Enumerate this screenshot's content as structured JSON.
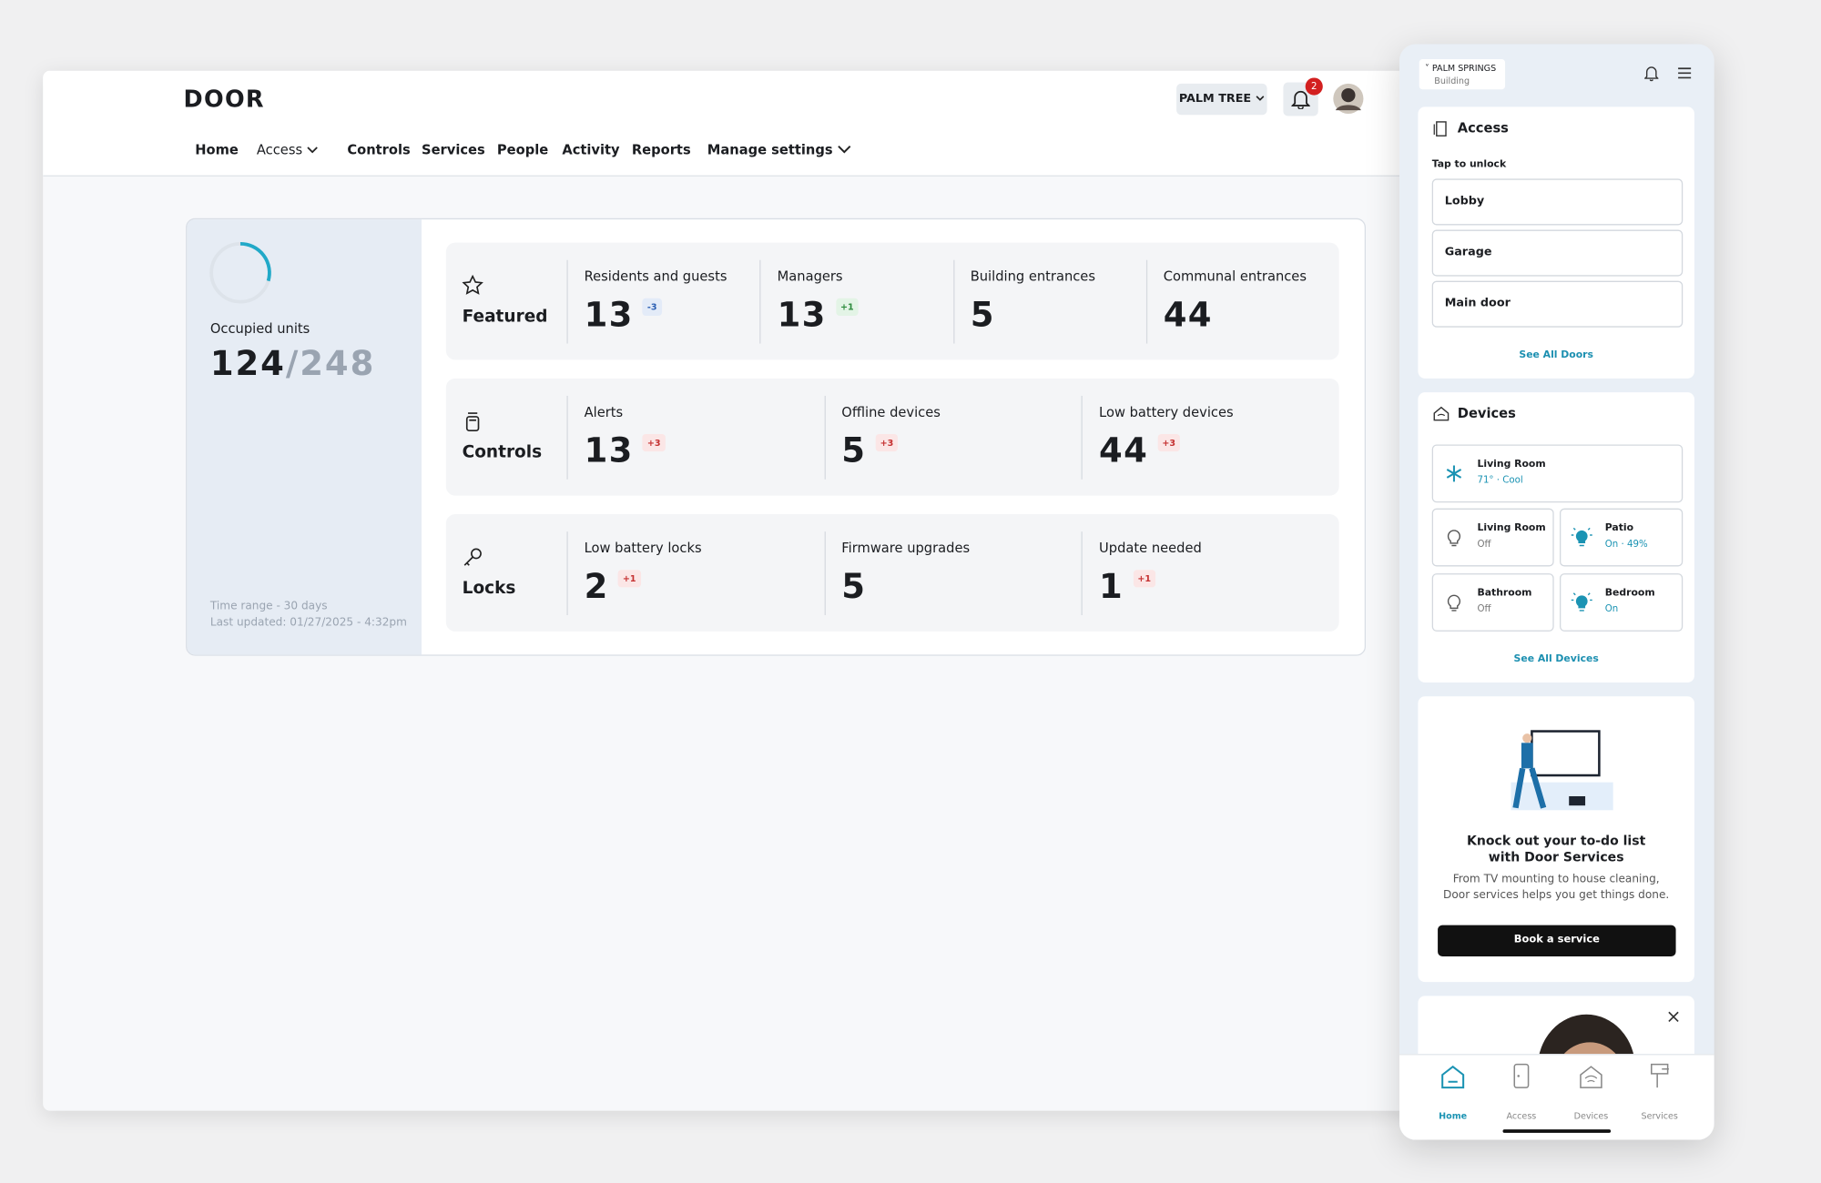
{
  "app": {
    "logo": "DOOR",
    "property": "PALM TREE",
    "notification_count": "2"
  },
  "nav": [
    "Home",
    "Access",
    "Controls",
    "Services",
    "People",
    "Activity",
    "Reports",
    "Manage settings"
  ],
  "summary": {
    "label": "Occupied units",
    "occupied": "124",
    "separator": "/",
    "total": "248",
    "time_range": "Time range - 30 days",
    "last_updated": "Last updated: 01/27/2025 - 4:32pm"
  },
  "groups": [
    {
      "title": "Featured",
      "metrics": [
        {
          "label": "Residents and guests",
          "value": "13",
          "delta": "-3"
        },
        {
          "label": "Managers",
          "value": "13",
          "delta": "+1"
        },
        {
          "label": "Building entrances",
          "value": "5"
        },
        {
          "label": "Communal entrances",
          "value": "44"
        }
      ]
    },
    {
      "title": "Controls",
      "metrics": [
        {
          "label": "Alerts",
          "value": "13",
          "delta": "+3"
        },
        {
          "label": "Offline devices",
          "value": "5",
          "delta": "+3"
        },
        {
          "label": "Low battery devices",
          "value": "44",
          "delta": "+3"
        }
      ]
    },
    {
      "title": "Locks",
      "metrics": [
        {
          "label": "Low battery locks",
          "value": "2",
          "delta": "+1"
        },
        {
          "label": "Firmware upgrades",
          "value": "5"
        },
        {
          "label": "Update needed",
          "value": "1",
          "delta": "+1"
        }
      ]
    }
  ],
  "mobile": {
    "location": "PALM SPRINGS",
    "location_type": "Building",
    "access": {
      "title": "Access",
      "subtitle": "Tap to unlock",
      "doors": [
        "Lobby",
        "Garage",
        "Main door"
      ],
      "link": "See All Doors"
    },
    "devices": {
      "title": "Devices",
      "items": [
        {
          "name": "Living Room",
          "status": "71° · Cool"
        },
        {
          "name": "Living Room",
          "status": "Off"
        },
        {
          "name": "Patio",
          "status": "On · 49%"
        },
        {
          "name": "Bathroom",
          "status": "Off"
        },
        {
          "name": "Bedroom",
          "status": "On"
        }
      ],
      "link": "See All Devices"
    },
    "promo": {
      "title": "Knock out your to-do list with Door Services",
      "body": "From TV mounting to house cleaning, Door services helps you get things done.",
      "button": "Book a service"
    },
    "tabs": [
      "Home",
      "Access",
      "Devices",
      "Services"
    ]
  }
}
